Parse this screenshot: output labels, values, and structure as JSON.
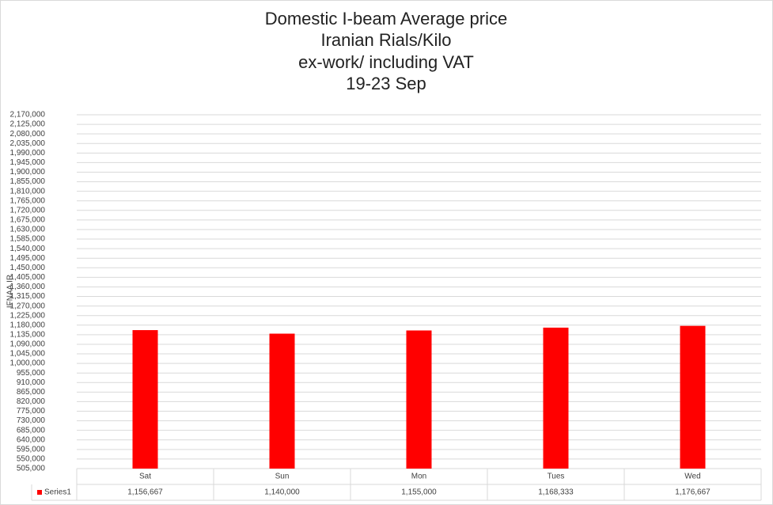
{
  "chart_data": {
    "type": "bar",
    "title": [
      "Domestic I-beam Average price",
      "Iranian Rials/Kilo",
      "ex-work/ including VAT",
      "19-23 Sep"
    ],
    "y_label": "IFNAA.IR",
    "categories": [
      "Sat",
      "Sun",
      "Mon",
      "Tues",
      "Wed"
    ],
    "series": [
      {
        "name": "Series1",
        "color": "#ff0000",
        "values": [
          1156667,
          1140000,
          1155000,
          1168333,
          1176667
        ],
        "value_labels": [
          "1,156,667",
          "1,140,000",
          "1,155,000",
          "1,168,333",
          "1,176,667"
        ]
      }
    ],
    "ylim": [
      505000,
      2170000
    ],
    "yticks": [
      {
        "value": 505000,
        "label": "505,000"
      },
      {
        "value": 550000,
        "label": "550,000"
      },
      {
        "value": 595000,
        "label": "595,000"
      },
      {
        "value": 640000,
        "label": "640,000"
      },
      {
        "value": 685000,
        "label": "685,000"
      },
      {
        "value": 730000,
        "label": "730,000"
      },
      {
        "value": 775000,
        "label": "775,000"
      },
      {
        "value": 820000,
        "label": "820,000"
      },
      {
        "value": 865000,
        "label": "865,000"
      },
      {
        "value": 910000,
        "label": "910,000"
      },
      {
        "value": 955000,
        "label": "955,000"
      },
      {
        "value": 1000000,
        "label": "1,000,000"
      },
      {
        "value": 1045000,
        "label": "1,045,000"
      },
      {
        "value": 1090000,
        "label": "1,090,000"
      },
      {
        "value": 1135000,
        "label": "1,135,000"
      },
      {
        "value": 1180000,
        "label": "1,180,000"
      },
      {
        "value": 1225000,
        "label": "1,225,000"
      },
      {
        "value": 1270000,
        "label": "1,270,000"
      },
      {
        "value": 1315000,
        "label": "1,315,000"
      },
      {
        "value": 1360000,
        "label": "1,360,000"
      },
      {
        "value": 1405000,
        "label": "1,405,000"
      },
      {
        "value": 1450000,
        "label": "1,450,000"
      },
      {
        "value": 1495000,
        "label": "1,495,000"
      },
      {
        "value": 1540000,
        "label": "1,540,000"
      },
      {
        "value": 1585000,
        "label": "1,585,000"
      },
      {
        "value": 1630000,
        "label": "1,630,000"
      },
      {
        "value": 1675000,
        "label": "1,675,000"
      },
      {
        "value": 1720000,
        "label": "1,720,000"
      },
      {
        "value": 1765000,
        "label": "1,765,000"
      },
      {
        "value": 1810000,
        "label": "1,810,000"
      },
      {
        "value": 1855000,
        "label": "1,855,000"
      },
      {
        "value": 1900000,
        "label": "1,900,000"
      },
      {
        "value": 1945000,
        "label": "1,945,000"
      },
      {
        "value": 1990000,
        "label": "1,990,000"
      },
      {
        "value": 2035000,
        "label": "2,035,000"
      },
      {
        "value": 2080000,
        "label": "2,080,000"
      },
      {
        "value": 2125000,
        "label": "2,125,000"
      },
      {
        "value": 2170000,
        "label": "2,170,000"
      }
    ],
    "grid": true,
    "data_table": true
  }
}
